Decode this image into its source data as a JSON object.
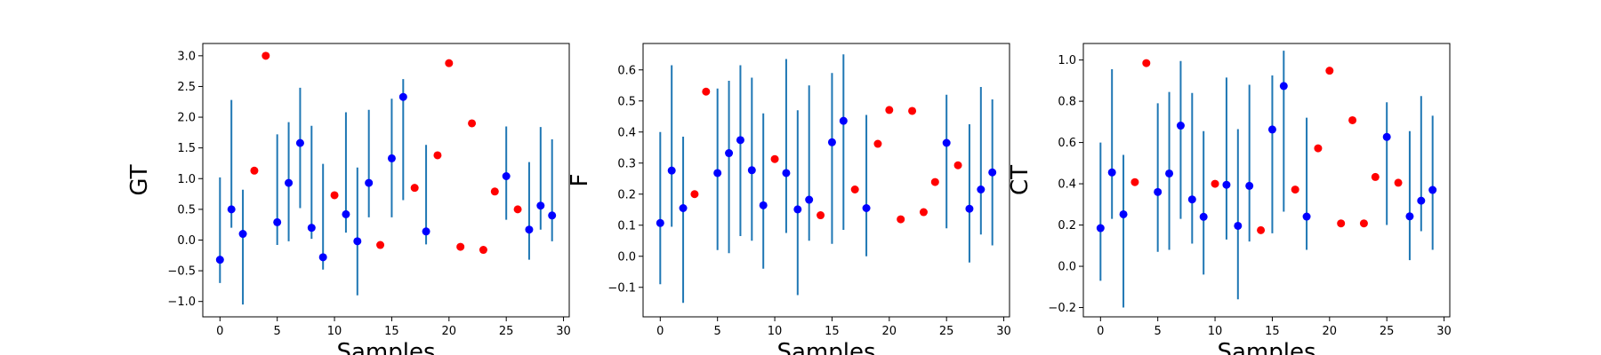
{
  "chart_data": [
    {
      "type": "scatter",
      "ylabel": "GT",
      "xlabel": "Samples",
      "xlim": [
        -1.5,
        30.5
      ],
      "ylim": [
        -1.25,
        3.2
      ],
      "xticks": [
        0,
        5,
        10,
        15,
        20,
        25,
        30
      ],
      "yticks": [
        -1.0,
        -0.5,
        0.0,
        0.5,
        1.0,
        1.5,
        2.0,
        2.5,
        3.0
      ],
      "ytick_labels": [
        "−1.0",
        "−0.5",
        "0.0",
        "0.5",
        "1.0",
        "1.5",
        "2.0",
        "2.5",
        "3.0"
      ],
      "errorbar_color": "#1f77b4",
      "blue_color": "#0000ff",
      "red_color": "#ff0000",
      "points": [
        {
          "x": 0,
          "y": -0.32,
          "lo": -0.7,
          "hi": 1.02,
          "c": "blue"
        },
        {
          "x": 1,
          "y": 0.5,
          "lo": 0.2,
          "hi": 2.28,
          "c": "blue"
        },
        {
          "x": 2,
          "y": 0.1,
          "lo": -1.05,
          "hi": 0.82,
          "c": "blue"
        },
        {
          "x": 3,
          "y": 1.13,
          "c": "red"
        },
        {
          "x": 4,
          "y": 3.0,
          "c": "red"
        },
        {
          "x": 5,
          "y": 0.29,
          "lo": -0.08,
          "hi": 1.72,
          "c": "blue"
        },
        {
          "x": 6,
          "y": 0.93,
          "lo": -0.02,
          "hi": 1.92,
          "c": "blue"
        },
        {
          "x": 7,
          "y": 1.58,
          "lo": 0.52,
          "hi": 2.48,
          "c": "blue"
        },
        {
          "x": 8,
          "y": 0.2,
          "lo": 0.02,
          "hi": 1.86,
          "c": "blue"
        },
        {
          "x": 9,
          "y": -0.28,
          "lo": -0.48,
          "hi": 1.24,
          "c": "blue"
        },
        {
          "x": 10,
          "y": 0.73,
          "c": "red"
        },
        {
          "x": 11,
          "y": 0.42,
          "lo": 0.12,
          "hi": 2.08,
          "c": "blue"
        },
        {
          "x": 12,
          "y": -0.02,
          "lo": -0.9,
          "hi": 1.18,
          "c": "blue"
        },
        {
          "x": 13,
          "y": 0.93,
          "lo": 0.37,
          "hi": 2.12,
          "c": "blue"
        },
        {
          "x": 14,
          "y": -0.08,
          "c": "red"
        },
        {
          "x": 15,
          "y": 1.33,
          "lo": 0.37,
          "hi": 2.3,
          "c": "blue"
        },
        {
          "x": 16,
          "y": 2.33,
          "lo": 0.65,
          "hi": 2.62,
          "c": "blue"
        },
        {
          "x": 17,
          "y": 0.85,
          "c": "red"
        },
        {
          "x": 18,
          "y": 0.14,
          "lo": -0.07,
          "hi": 1.55,
          "c": "blue"
        },
        {
          "x": 19,
          "y": 1.38,
          "c": "red"
        },
        {
          "x": 20,
          "y": 2.88,
          "c": "red"
        },
        {
          "x": 21,
          "y": -0.11,
          "c": "red"
        },
        {
          "x": 22,
          "y": 1.9,
          "c": "red"
        },
        {
          "x": 23,
          "y": -0.16,
          "c": "red"
        },
        {
          "x": 24,
          "y": 0.79,
          "c": "red"
        },
        {
          "x": 25,
          "y": 1.04,
          "lo": 0.33,
          "hi": 1.85,
          "c": "blue"
        },
        {
          "x": 26,
          "y": 0.5,
          "c": "red"
        },
        {
          "x": 27,
          "y": 0.17,
          "lo": -0.32,
          "hi": 1.27,
          "c": "blue"
        },
        {
          "x": 28,
          "y": 0.56,
          "lo": 0.17,
          "hi": 1.84,
          "c": "blue"
        },
        {
          "x": 29,
          "y": 0.4,
          "lo": -0.02,
          "hi": 1.64,
          "c": "blue"
        }
      ]
    },
    {
      "type": "scatter",
      "ylabel": "F",
      "xlabel": "Samples",
      "xlim": [
        -1.5,
        30.5
      ],
      "ylim": [
        -0.195,
        0.685
      ],
      "xticks": [
        0,
        5,
        10,
        15,
        20,
        25,
        30
      ],
      "yticks": [
        -0.1,
        0.0,
        0.1,
        0.2,
        0.3,
        0.4,
        0.5,
        0.6
      ],
      "ytick_labels": [
        "−0.1",
        "0.0",
        "0.1",
        "0.2",
        "0.3",
        "0.4",
        "0.5",
        "0.6"
      ],
      "errorbar_color": "#1f77b4",
      "blue_color": "#0000ff",
      "red_color": "#ff0000",
      "points": [
        {
          "x": 0,
          "y": 0.107,
          "lo": -0.09,
          "hi": 0.4,
          "c": "blue"
        },
        {
          "x": 1,
          "y": 0.276,
          "lo": 0.095,
          "hi": 0.615,
          "c": "blue"
        },
        {
          "x": 2,
          "y": 0.155,
          "lo": -0.15,
          "hi": 0.385,
          "c": "blue"
        },
        {
          "x": 3,
          "y": 0.2,
          "c": "red"
        },
        {
          "x": 4,
          "y": 0.53,
          "c": "red"
        },
        {
          "x": 5,
          "y": 0.268,
          "lo": 0.02,
          "hi": 0.54,
          "c": "blue"
        },
        {
          "x": 6,
          "y": 0.332,
          "lo": 0.01,
          "hi": 0.565,
          "c": "blue"
        },
        {
          "x": 7,
          "y": 0.374,
          "lo": 0.065,
          "hi": 0.615,
          "c": "blue"
        },
        {
          "x": 8,
          "y": 0.277,
          "lo": 0.05,
          "hi": 0.575,
          "c": "blue"
        },
        {
          "x": 9,
          "y": 0.164,
          "lo": -0.04,
          "hi": 0.46,
          "c": "blue"
        },
        {
          "x": 10,
          "y": 0.313,
          "c": "red"
        },
        {
          "x": 11,
          "y": 0.268,
          "lo": 0.075,
          "hi": 0.635,
          "c": "blue"
        },
        {
          "x": 12,
          "y": 0.151,
          "lo": -0.125,
          "hi": 0.47,
          "c": "blue"
        },
        {
          "x": 13,
          "y": 0.182,
          "lo": 0.05,
          "hi": 0.55,
          "c": "blue"
        },
        {
          "x": 14,
          "y": 0.132,
          "c": "red"
        },
        {
          "x": 15,
          "y": 0.367,
          "lo": 0.04,
          "hi": 0.59,
          "c": "blue"
        },
        {
          "x": 16,
          "y": 0.436,
          "lo": 0.085,
          "hi": 0.65,
          "c": "blue"
        },
        {
          "x": 17,
          "y": 0.215,
          "c": "red"
        },
        {
          "x": 18,
          "y": 0.155,
          "lo": 0.0,
          "hi": 0.455,
          "c": "blue"
        },
        {
          "x": 19,
          "y": 0.362,
          "c": "red"
        },
        {
          "x": 20,
          "y": 0.471,
          "c": "red"
        },
        {
          "x": 21,
          "y": 0.119,
          "c": "red"
        },
        {
          "x": 22,
          "y": 0.468,
          "c": "red"
        },
        {
          "x": 23,
          "y": 0.142,
          "c": "red"
        },
        {
          "x": 24,
          "y": 0.239,
          "c": "red"
        },
        {
          "x": 25,
          "y": 0.365,
          "lo": 0.09,
          "hi": 0.52,
          "c": "blue"
        },
        {
          "x": 26,
          "y": 0.293,
          "c": "red"
        },
        {
          "x": 27,
          "y": 0.153,
          "lo": -0.02,
          "hi": 0.425,
          "c": "blue"
        },
        {
          "x": 28,
          "y": 0.215,
          "lo": 0.07,
          "hi": 0.545,
          "c": "blue"
        },
        {
          "x": 29,
          "y": 0.27,
          "lo": 0.035,
          "hi": 0.505,
          "c": "blue"
        }
      ]
    },
    {
      "type": "scatter",
      "ylabel": "CT",
      "xlabel": "Samples",
      "xlim": [
        -1.5,
        30.5
      ],
      "ylim": [
        -0.245,
        1.08
      ],
      "xticks": [
        0,
        5,
        10,
        15,
        20,
        25,
        30
      ],
      "yticks": [
        -0.2,
        0.0,
        0.2,
        0.4,
        0.6,
        0.8,
        1.0
      ],
      "ytick_labels": [
        "−0.2",
        "0.0",
        "0.2",
        "0.4",
        "0.6",
        "0.8",
        "1.0"
      ],
      "errorbar_color": "#1f77b4",
      "blue_color": "#0000ff",
      "red_color": "#ff0000",
      "points": [
        {
          "x": 0,
          "y": 0.185,
          "lo": -0.07,
          "hi": 0.6,
          "c": "blue"
        },
        {
          "x": 1,
          "y": 0.455,
          "lo": 0.23,
          "hi": 0.955,
          "c": "blue"
        },
        {
          "x": 2,
          "y": 0.252,
          "lo": -0.2,
          "hi": 0.54,
          "c": "blue"
        },
        {
          "x": 3,
          "y": 0.408,
          "c": "red"
        },
        {
          "x": 4,
          "y": 0.985,
          "c": "red"
        },
        {
          "x": 5,
          "y": 0.36,
          "lo": 0.07,
          "hi": 0.79,
          "c": "blue"
        },
        {
          "x": 6,
          "y": 0.45,
          "lo": 0.08,
          "hi": 0.845,
          "c": "blue"
        },
        {
          "x": 7,
          "y": 0.682,
          "lo": 0.23,
          "hi": 0.995,
          "c": "blue"
        },
        {
          "x": 8,
          "y": 0.324,
          "lo": 0.11,
          "hi": 0.84,
          "c": "blue"
        },
        {
          "x": 9,
          "y": 0.24,
          "lo": -0.04,
          "hi": 0.655,
          "c": "blue"
        },
        {
          "x": 10,
          "y": 0.4,
          "c": "red"
        },
        {
          "x": 11,
          "y": 0.395,
          "lo": 0.13,
          "hi": 0.915,
          "c": "blue"
        },
        {
          "x": 12,
          "y": 0.196,
          "lo": -0.16,
          "hi": 0.665,
          "c": "blue"
        },
        {
          "x": 13,
          "y": 0.39,
          "lo": 0.12,
          "hi": 0.88,
          "c": "blue"
        },
        {
          "x": 14,
          "y": 0.175,
          "c": "red"
        },
        {
          "x": 15,
          "y": 0.663,
          "lo": 0.16,
          "hi": 0.925,
          "c": "blue"
        },
        {
          "x": 16,
          "y": 0.874,
          "lo": 0.265,
          "hi": 1.045,
          "c": "blue"
        },
        {
          "x": 17,
          "y": 0.372,
          "c": "red"
        },
        {
          "x": 18,
          "y": 0.241,
          "lo": 0.08,
          "hi": 0.72,
          "c": "blue"
        },
        {
          "x": 19,
          "y": 0.572,
          "c": "red"
        },
        {
          "x": 20,
          "y": 0.948,
          "c": "red"
        },
        {
          "x": 21,
          "y": 0.208,
          "c": "red"
        },
        {
          "x": 22,
          "y": 0.708,
          "c": "red"
        },
        {
          "x": 23,
          "y": 0.208,
          "c": "red"
        },
        {
          "x": 24,
          "y": 0.433,
          "c": "red"
        },
        {
          "x": 25,
          "y": 0.627,
          "lo": 0.2,
          "hi": 0.795,
          "c": "blue"
        },
        {
          "x": 26,
          "y": 0.405,
          "c": "red"
        },
        {
          "x": 27,
          "y": 0.242,
          "lo": 0.03,
          "hi": 0.655,
          "c": "blue"
        },
        {
          "x": 28,
          "y": 0.318,
          "lo": 0.17,
          "hi": 0.825,
          "c": "blue"
        },
        {
          "x": 29,
          "y": 0.37,
          "lo": 0.08,
          "hi": 0.73,
          "c": "blue"
        }
      ]
    }
  ]
}
